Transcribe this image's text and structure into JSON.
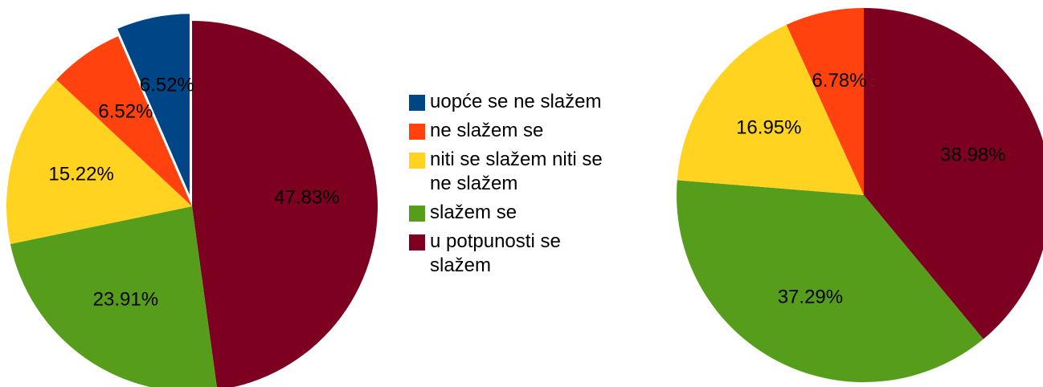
{
  "chart_data": [
    {
      "type": "pie",
      "categories": [
        "uopće se ne slažem",
        "ne slažem se",
        "niti se slažem niti se ne slažem",
        "slažem se",
        "u potpunosti se slažem"
      ],
      "values": [
        6.52,
        6.52,
        15.22,
        23.91,
        47.83
      ],
      "value_labels": [
        "6.52%",
        "6.52%",
        "15.22%",
        "23.91%",
        "47.83%"
      ],
      "colors": [
        "#004586",
        "#ff420e",
        "#ffd320",
        "#579d1c",
        "#7e0021"
      ],
      "explode": [
        true,
        false,
        false,
        false,
        false
      ],
      "legend": "right"
    },
    {
      "type": "pie",
      "categories": [
        "ne slažem se",
        "niti se slažem niti se ne slažem",
        "slažem se",
        "u potpunosti se slažem"
      ],
      "values": [
        6.78,
        16.95,
        37.29,
        38.98
      ],
      "value_labels": [
        "6.78%",
        "16.95%",
        "37.29%",
        "38.98%"
      ],
      "colors": [
        "#ff420e",
        "#ffd320",
        "#579d1c",
        "#7e0021"
      ],
      "explode": [
        false,
        false,
        false,
        false
      ]
    }
  ]
}
